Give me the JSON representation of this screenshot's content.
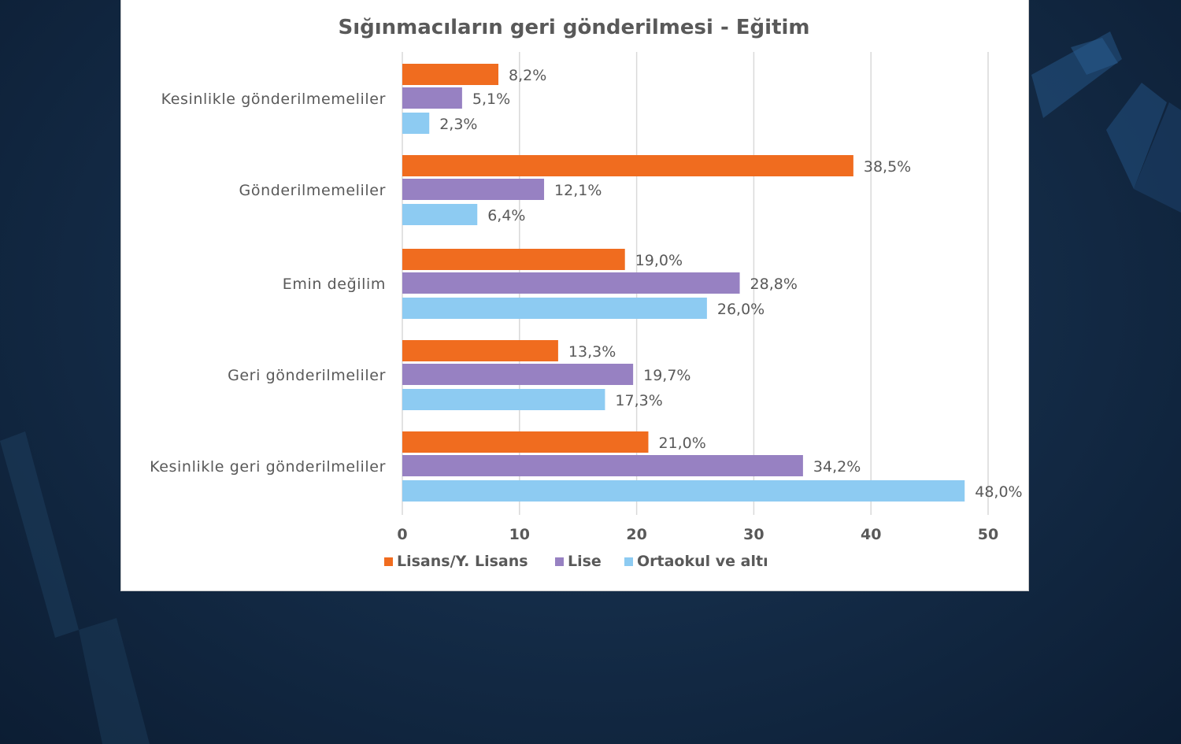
{
  "chart_data": {
    "type": "bar",
    "orientation": "horizontal",
    "title": "Sığınmacıların geri gönderilmesi - Eğitim",
    "categories": [
      "Kesinlikle gönderilmemeliler",
      "Gönderilmemeliler",
      "Emin değilim",
      "Geri gönderilmeliler",
      "Kesinlikle geri gönderilmeliler"
    ],
    "series": [
      {
        "name": "Lisans/Y. Lisans",
        "color": "#F06C1F",
        "values": [
          8.2,
          38.5,
          19.0,
          13.3,
          21.0
        ],
        "labels": [
          "8,2%",
          "38,5%",
          "19,0%",
          "13,3%",
          "21,0%"
        ]
      },
      {
        "name": "Lise",
        "color": "#9781C2",
        "values": [
          5.1,
          12.1,
          28.8,
          19.7,
          34.2
        ],
        "labels": [
          "5,1%",
          "12,1%",
          "28,8%",
          "19,7%",
          "34,2%"
        ]
      },
      {
        "name": "Ortaokul ve altı",
        "color": "#8DCBF2",
        "values": [
          2.3,
          6.4,
          26.0,
          17.3,
          48.0
        ],
        "labels": [
          "2,3%",
          "6,4%",
          "26,0%",
          "17,3%",
          "48,0%"
        ]
      }
    ],
    "xlim": [
      0,
      50
    ],
    "xticks": [
      "0",
      "10",
      "20",
      "30",
      "40",
      "50"
    ],
    "xtick_values": [
      0,
      10,
      20,
      30,
      40,
      50
    ],
    "grid": true,
    "legend_position": "bottom"
  }
}
